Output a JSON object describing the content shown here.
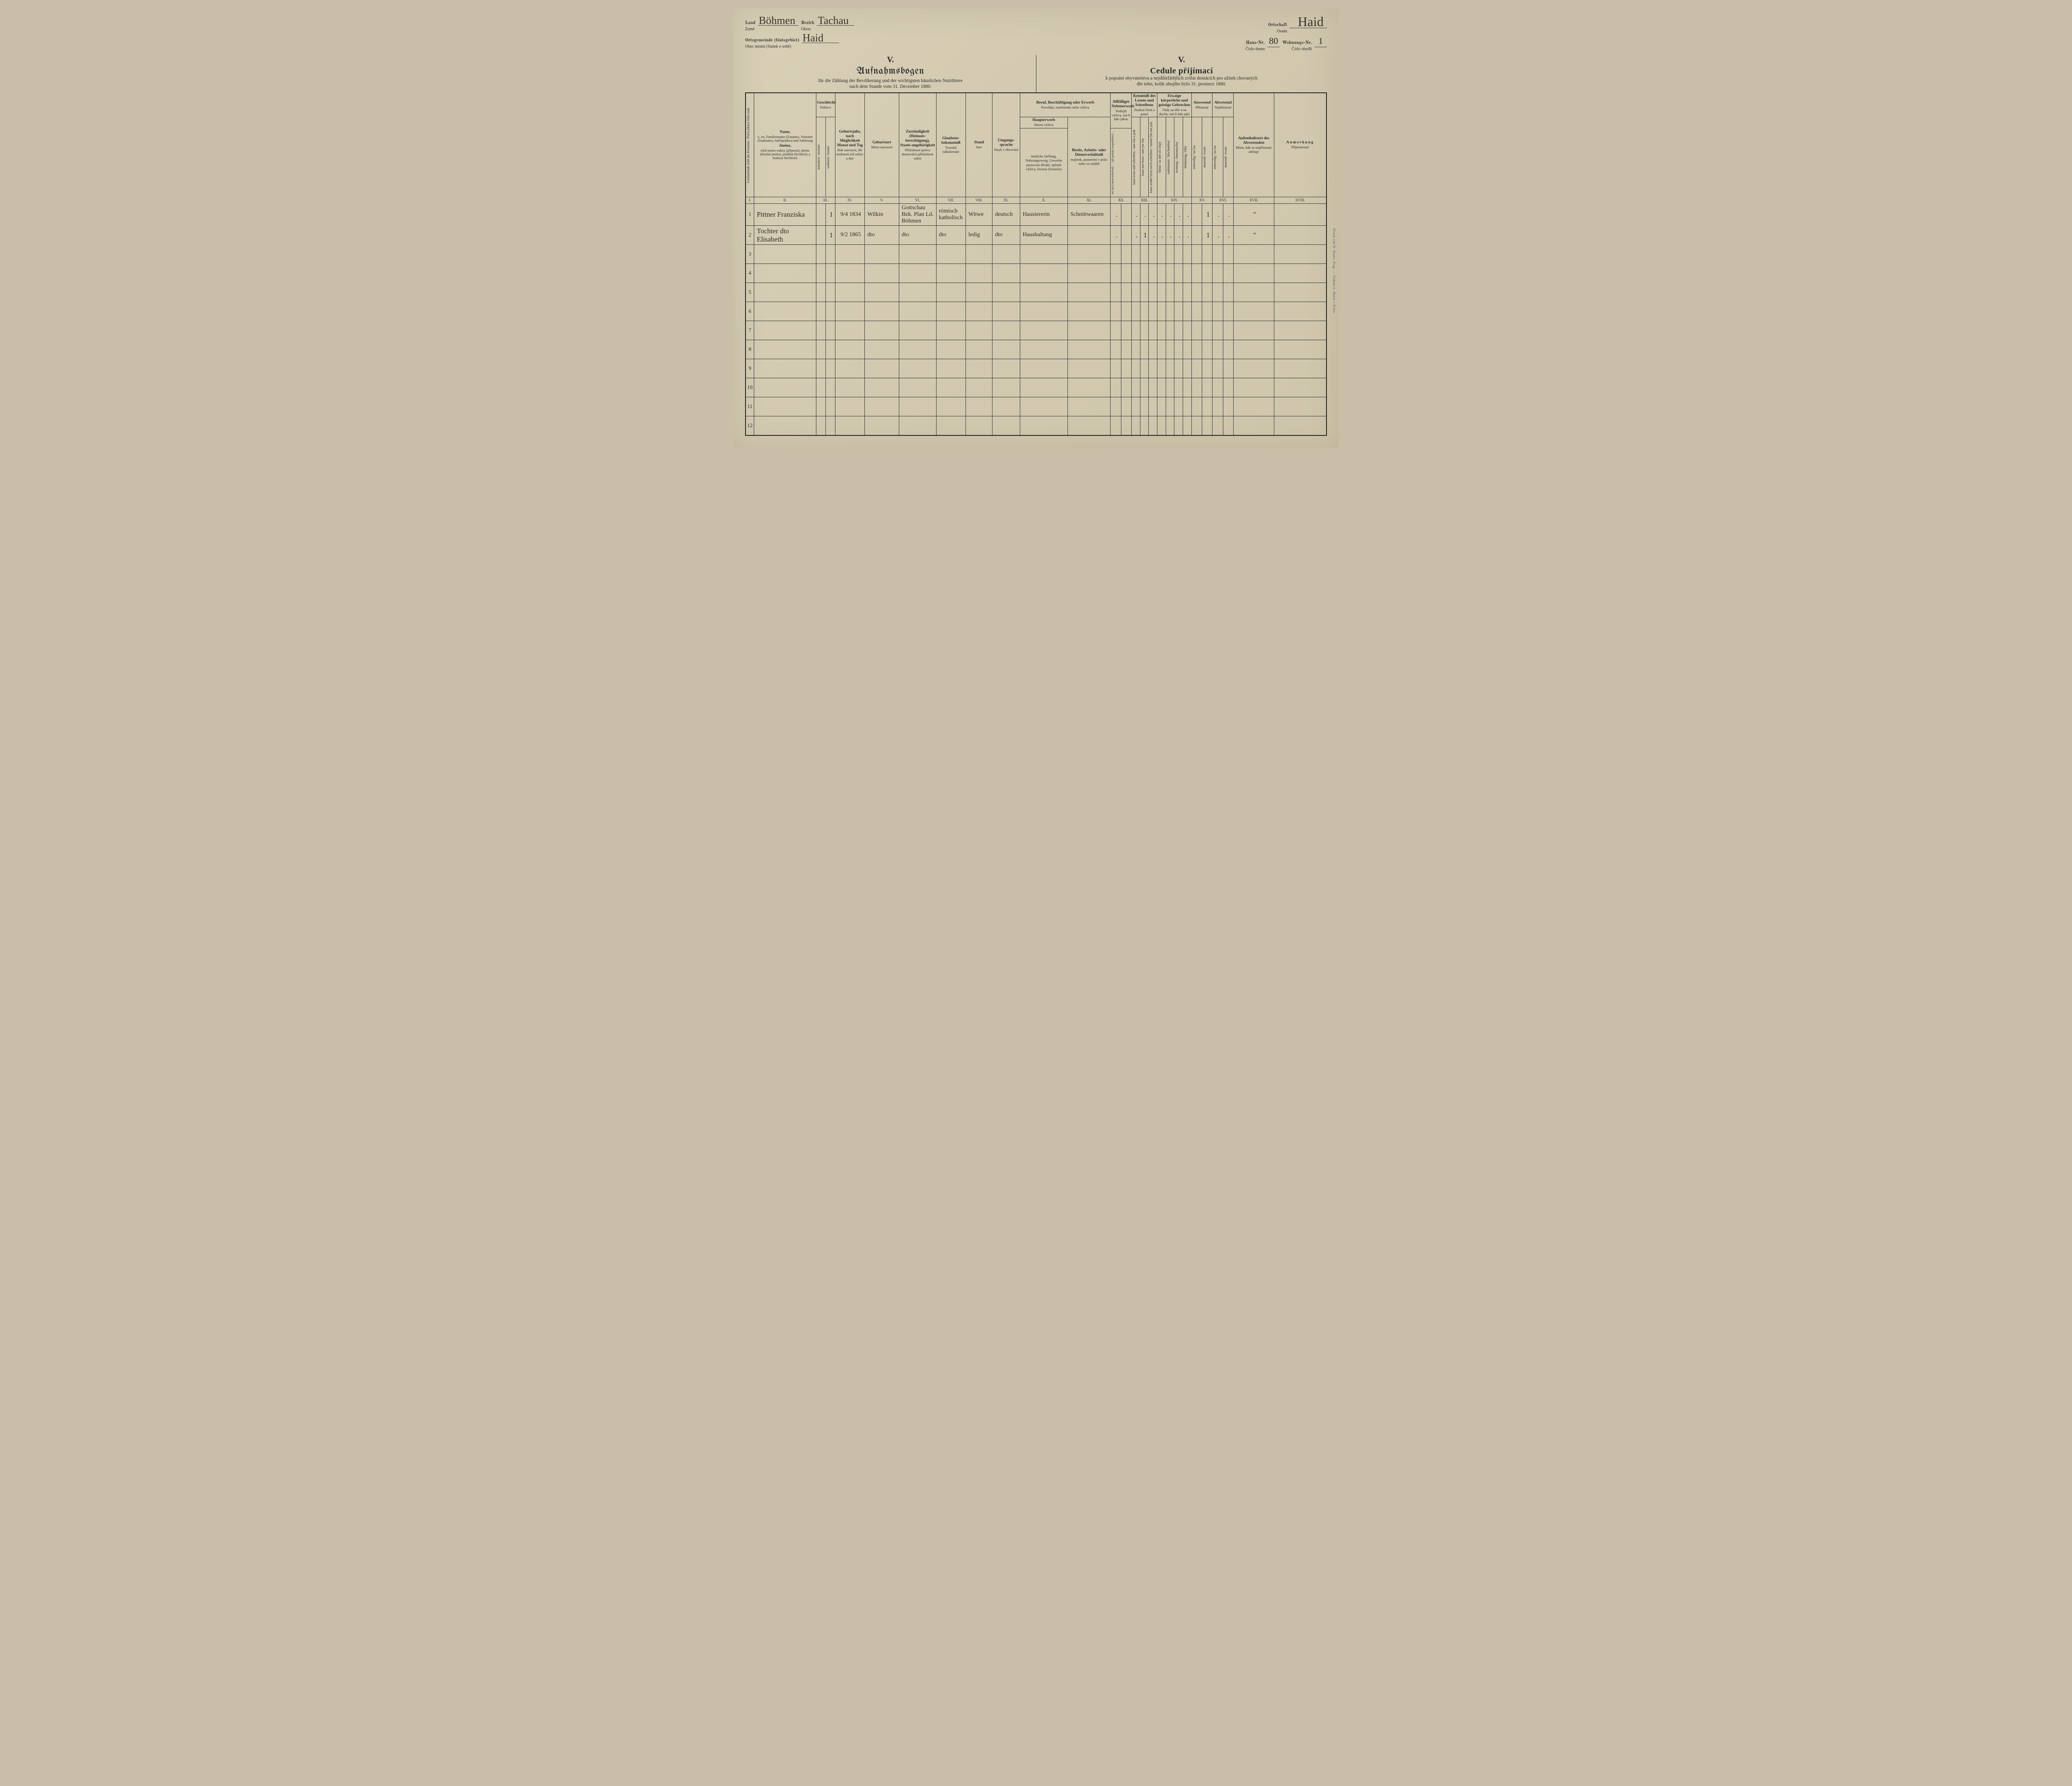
{
  "header": {
    "left": {
      "land_de": "Land",
      "land_cz": "Země",
      "land_val": "Böhmen",
      "bezirk_de": "Bezirk",
      "bezirk_cz": "Okres",
      "bezirk_val": "Tachau",
      "ortsg_de": "Ortsgemeinde (Gutsgebiet)",
      "ortsg_cz": "Obec místní (Statek o sobě)",
      "ortsg_val": "Haid"
    },
    "right": {
      "ort_de": "Ortschaft",
      "ort_cz": "Osada",
      "ort_val": "Haid",
      "haus_de": "Haus-Nr.",
      "haus_cz": "Číslo domu",
      "haus_val": "80",
      "wohn_de": "Wohnungs-Nr.",
      "wohn_cz": "Číslo obydlí",
      "wohn_val": "1"
    }
  },
  "titles": {
    "roman": "V.",
    "left_main": "Aufnahmsbogen",
    "left_sub1": "für die Zählung der Bevölkerung und der wichtigsten häuslichen Nutzthiere",
    "left_sub2": "nach dem Stande vom 31. December 1880.",
    "right_main": "Cedule přijímací",
    "right_sub1": "k popsání obyvatelstva a nejdůležitějších zvířat domácích pro užitek chovaných",
    "right_sub2": "dle toho, kolik obojího bylo 31. prosince 1880."
  },
  "cols": {
    "c1": {
      "de": "Fortlaufende Zahl der Personen",
      "cz": "Počet jdoucí číslo osob"
    },
    "c2": {
      "de": "Name,",
      "de2": "u. zw. Familienname (Zuname), Vorname (Taufname), Adelsprädicat und Adelsrang",
      "cz": "Jméno,",
      "cz2": "totiž jméno rodiny (příjmení), jméno (křestné jméno), predikát šlechtický a hodnost šlechtická"
    },
    "c3": {
      "de": "Geschlecht",
      "cz": "Pohlaví",
      "m_de": "männlich",
      "m_cz": "mužské",
      "f_de": "weiblich",
      "f_cz": "ženské"
    },
    "c4": {
      "de": "Geburtsjahr, nach Möglichkeit Monat und Tag",
      "cz": "Rok narození, dle možnosti též měsíc a den"
    },
    "c5": {
      "de": "Geburtsort",
      "cz": "Místo narození"
    },
    "c6": {
      "de": "Zuständigkeit (Heimats-berechtigung), Staats-angehörigkeit",
      "cz": "Příslušnost (právo domovské) příslušnost státní"
    },
    "c7": {
      "de": "Glaubens-bekenntniß",
      "cz": "Vyznání náboženské"
    },
    "c8": {
      "de": "Stand",
      "cz": "Stav"
    },
    "c9": {
      "de": "Umgangs-sprache",
      "cz": "Jazyk v obcování"
    },
    "c10_top": {
      "de": "Beruf, Beschäftigung oder Erwerb",
      "cz": "Povolání, zaměstnání nebo výživa"
    },
    "c10a": {
      "de": "Haupterwerb",
      "cz": "hlavní výživa",
      "de2": "ämtliche Stellung, Nahrungszweig, Gewerbe",
      "cz2": "postavení úřední, způsob výživy, živnost (řemeslo)"
    },
    "c10b": {
      "de": "Besitz, Arbeits- oder Dienstverhältniß",
      "cz": "majetek, postavení v práci nebo ve službě"
    },
    "c11": {
      "de": "Allfälliger Nebenerwerb",
      "cz": "Vedlejší výživa, má-li kdo jakou"
    },
    "c12": {
      "de": "Kenntniß des Lesens und Schreibens",
      "cz": "Znalost čtení a psaní"
    },
    "c12a": "kann lesen und schreiben / umí číst a psát",
    "c12b": "kann nur lesen / umí jen číst",
    "c12c": "kann weder lesen noch schreiben / neumí číst ani psát",
    "c13": {
      "de": "Etwaige körperliche und geistige Gebrechen",
      "cz": "Vady na těle a na duchu, má-li kdo jaké"
    },
    "c13a": "blind / na obě oči slepý",
    "c13b": "taubstumm / hluchoněmý",
    "c13c": "irrsinnig / choromyslný",
    "c13d": "blödsinnig / blbý",
    "c14": {
      "de": "Anwesend",
      "cz": "Přítomný"
    },
    "c14a": "zeitweilig / na čas",
    "c14b": "dauernd / trvale",
    "c15": {
      "de": "Abwesend",
      "cz": "Nepřítomný"
    },
    "c15a": "zeitweilig / na čas",
    "c15b": "dauernd / trvale",
    "c16": {
      "de": "Aufenthaltsort des Abwesenden",
      "cz": "Místo, kde se nepřítomný zdržuje"
    },
    "c17": {
      "de": "Anmerkung",
      "cz": "Připomenutí"
    }
  },
  "roman_cells": [
    "I.",
    "II.",
    "III.",
    "IV.",
    "V.",
    "VI.",
    "VII.",
    "VIII.",
    "IX.",
    "X.",
    "XI.",
    "XII.",
    "XIII.",
    "XIV.",
    "XV.",
    "XVI.",
    "XVII.",
    "XVIII."
  ],
  "rows": [
    {
      "n": "1",
      "name": "Pittner Franziska",
      "m": "",
      "f": "1",
      "dob": "9/4 1834",
      "bplace": "Wilkin",
      "zust": "Gottschau Bzk. Plan Ld. Böhmen",
      "rel": "römisch katholisch",
      "stand": "Witwe",
      "lang": "deutsch",
      "beruf": "Hausiererin",
      "verh": "Schnittwaaren",
      "neben": ".",
      "r1": ".",
      "r2": ".",
      "r3": ".",
      "g1": ".",
      "g2": ".",
      "g3": ".",
      "g4": ".",
      "a1": "",
      "a2": "1",
      "ab1": ".",
      "ab2": ".",
      "ort": "\"",
      "anm": ""
    },
    {
      "n": "2",
      "name": "Tochter dto Elisabeth",
      "m": "",
      "f": "1",
      "dob": "9/2 1865",
      "bplace": "dto",
      "zust": "dto",
      "rel": "dto",
      "stand": "ledig",
      "lang": "dto",
      "beruf": "Haushaltung",
      "verh": "",
      "neben": ".",
      "r1": ".",
      "r2": "1",
      "r3": ".",
      "g1": ".",
      "g2": ".",
      "g3": ".",
      "g4": ".",
      "a1": "",
      "a2": "1",
      "ab1": ".",
      "ab2": ".",
      "ort": "\"",
      "anm": ""
    },
    {
      "n": "3"
    },
    {
      "n": "4"
    },
    {
      "n": "5"
    },
    {
      "n": "6"
    },
    {
      "n": "7"
    },
    {
      "n": "8"
    },
    {
      "n": "9"
    },
    {
      "n": "10"
    },
    {
      "n": "11"
    },
    {
      "n": "12"
    }
  ],
  "printer": "Druck von W. Haase, Prag. — Tiskem A. Haase v Praze."
}
